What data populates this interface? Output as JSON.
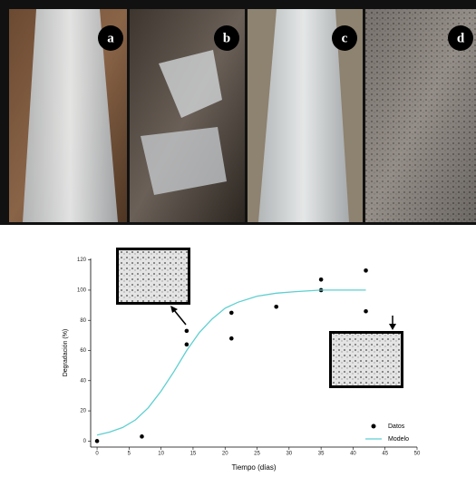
{
  "panels": [
    "a",
    "b",
    "c",
    "d"
  ],
  "chart_data": {
    "type": "scatter",
    "x_label": "Tiempo (días)",
    "y_label": "Degradación (%)",
    "xlim": [
      -1,
      50
    ],
    "ylim": [
      -4,
      121
    ],
    "xticks": [
      0,
      5,
      10,
      15,
      20,
      25,
      30,
      35,
      40,
      45,
      50
    ],
    "yticks": [
      0,
      20,
      40,
      60,
      80,
      100,
      120
    ],
    "legend": "lower right",
    "series": [
      {
        "name": "Datos",
        "kind": "points",
        "color": "#000000",
        "x": [
          0,
          7,
          14,
          14,
          21,
          21,
          28,
          35,
          35,
          42,
          42
        ],
        "values": [
          0,
          3,
          73,
          64,
          85,
          68,
          89,
          107,
          100,
          113,
          86
        ]
      },
      {
        "name": "Modelo",
        "kind": "line",
        "color": "#5ecfd0",
        "x": [
          0,
          2,
          4,
          6,
          8,
          10,
          12,
          14,
          16,
          18,
          20,
          22,
          25,
          28,
          31,
          35,
          38,
          42
        ],
        "values": [
          4,
          6,
          9,
          14,
          22,
          33,
          46,
          60,
          72,
          81,
          88,
          92,
          96,
          98,
          99,
          100,
          100,
          100
        ]
      }
    ]
  }
}
